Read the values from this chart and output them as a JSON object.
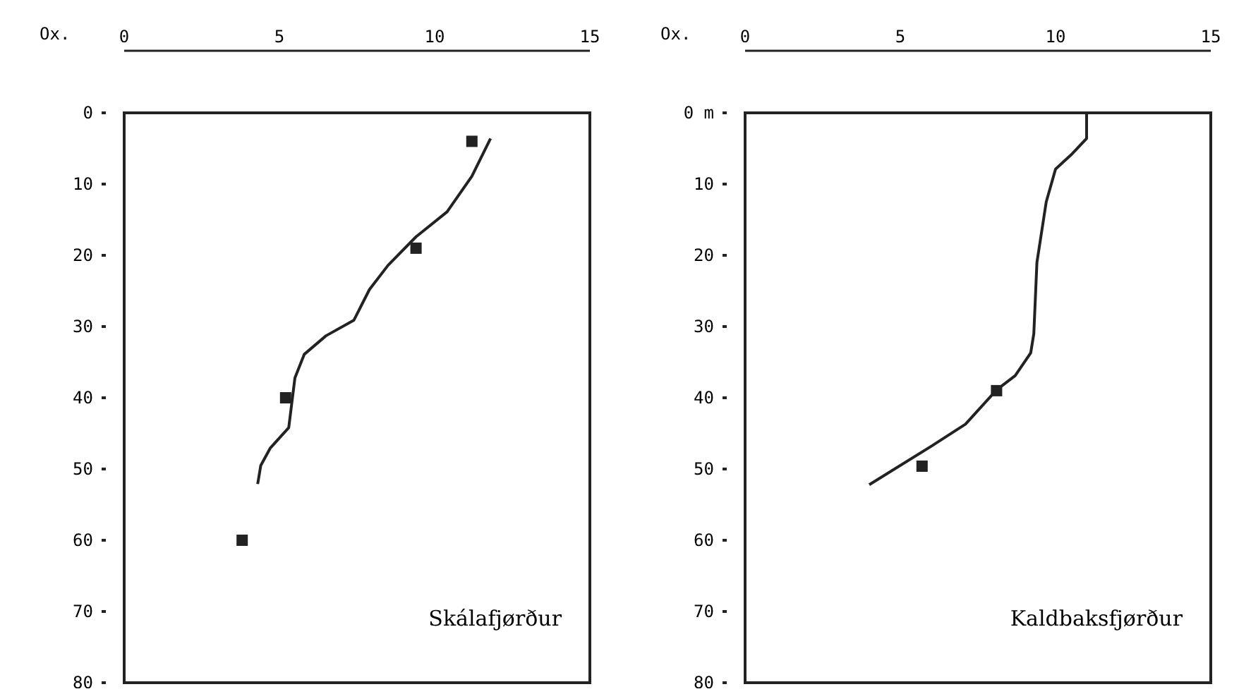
{
  "chart_data": [
    {
      "type": "line",
      "title": "Skálafjørður",
      "xlabel": "Ox.",
      "xlim": [
        0,
        15
      ],
      "xticks": [
        0,
        5,
        10,
        15
      ],
      "ylim": [
        80,
        0
      ],
      "yticks": [
        0,
        10,
        20,
        30,
        40,
        50,
        60,
        70,
        80
      ],
      "grid": false,
      "series": [
        {
          "color": "#222222",
          "marker": "none",
          "x": [
            11.8,
            11.2,
            10.4,
            9.4,
            8.5,
            7.9,
            7.4,
            6.5,
            5.8,
            5.5,
            5.3,
            4.7,
            4.4,
            4.3
          ],
          "values": [
            3.6,
            8.9,
            13.9,
            17.4,
            21.4,
            24.8,
            29.1,
            31.3,
            33.9,
            37.2,
            44.2,
            47.1,
            49.5,
            52.1
          ]
        },
        {
          "type": "scatter",
          "color": "#222222",
          "marker": "square",
          "x": [
            11.2,
            9.4,
            5.2,
            3.8
          ],
          "values": [
            4,
            19,
            40,
            60
          ]
        }
      ]
    },
    {
      "type": "line",
      "title": "Kaldbaksfjørður",
      "xlabel": "Ox.",
      "xlim": [
        0,
        15
      ],
      "xticks": [
        0,
        5,
        10,
        15
      ],
      "ylim": [
        80,
        0
      ],
      "yticks": [
        {
          "value": 0,
          "label": "0 m"
        },
        10,
        20,
        30,
        40,
        50,
        60,
        70,
        80
      ],
      "grid": false,
      "series": [
        {
          "color": "#222222",
          "marker": "none",
          "x": [
            11.0,
            11.0,
            10.5,
            10.0,
            9.7,
            9.4,
            9.3,
            9.2,
            8.7,
            8.1,
            7.1,
            6.0,
            4.0
          ],
          "values": [
            0,
            3.6,
            5.9,
            7.9,
            12.5,
            21,
            31,
            33.7,
            36.9,
            38.9,
            43.7,
            46.8,
            52.2
          ]
        },
        {
          "type": "scatter",
          "color": "#222222",
          "marker": "square",
          "x": [
            8.1,
            5.7
          ],
          "values": [
            39,
            49.6
          ]
        }
      ]
    }
  ]
}
